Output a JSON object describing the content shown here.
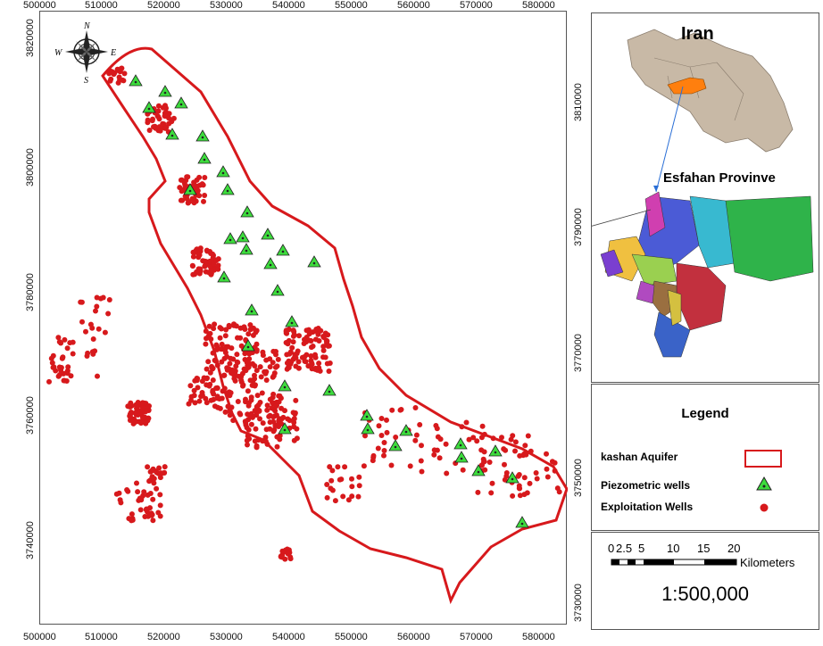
{
  "map": {
    "x_ticks": [
      "500000",
      "510000",
      "520000",
      "530000",
      "540000",
      "550000",
      "560000",
      "570000",
      "580000"
    ],
    "y_ticks_left": [
      "3820000",
      "3800000",
      "3780000",
      "3760000",
      "3740000"
    ],
    "y_ticks_right": [
      "3810000",
      "3790000",
      "3770000",
      "3750000",
      "3730000"
    ],
    "compass": {
      "n": "N",
      "s": "S",
      "e": "E",
      "w": "W"
    },
    "colors": {
      "aquifer": "#d7191c",
      "wells": "#d7191c",
      "piezo": "#3ddc3d"
    }
  },
  "inset": {
    "country_title": "Iran",
    "province_title": "Esfahan Provinve",
    "colors": {
      "country": "#c8b9a6",
      "highlight": "#ff7f0e"
    }
  },
  "legend": {
    "title": "Legend",
    "items": [
      {
        "label": "kashan Aquifer",
        "symbol": "polygon-outline"
      },
      {
        "label": "Piezometric wells",
        "symbol": "triangle"
      },
      {
        "label": "Exploitation Wells",
        "symbol": "dot"
      }
    ]
  },
  "scale": {
    "ticks": [
      "0",
      "2.5",
      "5",
      "10",
      "15",
      "20"
    ],
    "unit": "Kilometers",
    "ratio": "1:500,000"
  }
}
